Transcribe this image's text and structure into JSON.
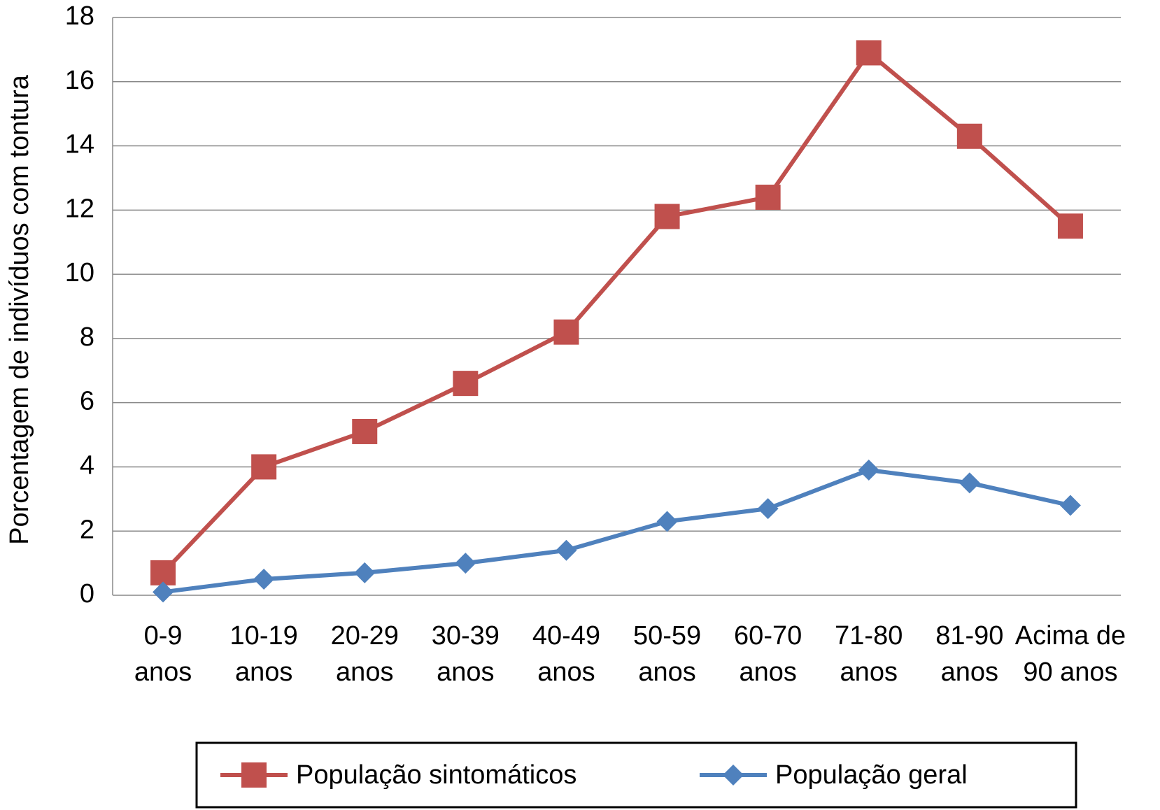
{
  "chart_data": {
    "type": "line",
    "y_label": "Porcentagem de indivíduos com tontura",
    "categories": [
      "0-9\nanos",
      "10-19\nanos",
      "20-29\nanos",
      "30-39\nanos",
      "40-49\nanos",
      "50-59\nanos",
      "60-70\nanos",
      "71-80\nanos",
      "81-90\nanos",
      "Acima de\n90 anos"
    ],
    "series": [
      {
        "name": "População sintomáticos",
        "color": "#c0504d",
        "marker": "square",
        "values": [
          0.7,
          4.0,
          5.1,
          6.6,
          8.2,
          11.8,
          12.4,
          16.9,
          14.3,
          11.5
        ]
      },
      {
        "name": "População geral",
        "color": "#4f81bd",
        "marker": "diamond",
        "values": [
          0.1,
          0.5,
          0.7,
          1.0,
          1.4,
          2.3,
          2.7,
          3.9,
          3.5,
          2.8
        ]
      }
    ],
    "ylim": [
      0,
      18
    ],
    "yticks": [
      0,
      2,
      4,
      6,
      8,
      10,
      12,
      14,
      16,
      18
    ],
    "grid": true,
    "legend": "bottom"
  }
}
